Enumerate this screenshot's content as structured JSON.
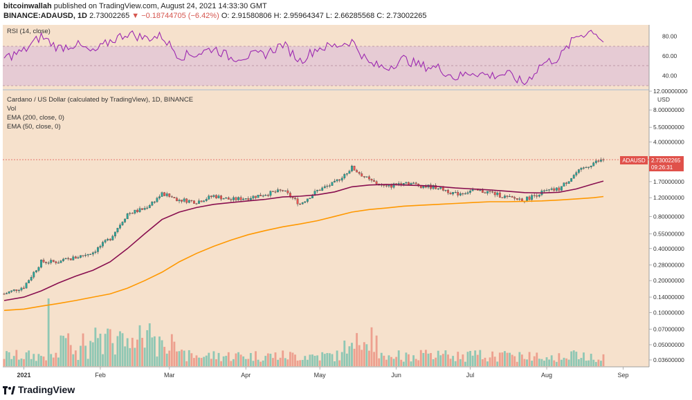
{
  "header": {
    "line1_user": "bitcoinwallah",
    "line1_rest": " published on TradingView.com, August 24, 2021 14:33:30 GMT",
    "symbol": "BINANCE:ADAUSD, 1D",
    "last": "2.73002265",
    "change": "▼ −0.18744705 (−6.42%)",
    "ohlc": "O: 2.91580806  H: 2.95964347  L: 2.66285568  C: 2.73002265"
  },
  "rsi_pane": {
    "label": "RSI (14, close)",
    "ticks": [
      "80.00",
      "60.00",
      "40.00"
    ]
  },
  "price_pane": {
    "title": "Cardano / US Dollar (calculated by TradingView), 1D, BINANCE",
    "indicators": [
      "Vol",
      "EMA (200, close, 0)",
      "EMA (50, close, 0)"
    ],
    "axis_unit": "USD",
    "price_tag": {
      "symbol": "ADAUSD",
      "price": "2.73002265",
      "countdown": "09:26:31"
    }
  },
  "footer": {
    "brand": "TradingView"
  },
  "colors": {
    "background": "#f6e1cc",
    "rsi_band": "#e6cbd4",
    "rsi_line": "#9c27b0",
    "up": "#26a69a",
    "down": "#ef5350",
    "ema200": "#ff9800",
    "ema50": "#880e4f",
    "tag": "#e0514a"
  },
  "chart_data": {
    "type": "candlestick",
    "xlabels": [
      "2021",
      "Feb",
      "Mar",
      "Apr",
      "May",
      "Jun",
      "Jul",
      "Aug",
      "Sep"
    ],
    "yaxis": {
      "scale": "log",
      "ticks": [
        "12.00000000",
        "8.00000000",
        "5.50000000",
        "4.00000000",
        "2.73002265",
        "1.70000000",
        "1.20000000",
        "0.80000000",
        "0.55000000",
        "0.40000000",
        "0.28000000",
        "0.20000000",
        "0.14000000",
        "0.10000000",
        "0.07000000",
        "0.05000000",
        "0.03600000"
      ],
      "tick_values": [
        12,
        8,
        5.5,
        4,
        2.73,
        1.7,
        1.2,
        0.8,
        0.55,
        0.4,
        0.28,
        0.2,
        0.14,
        0.1,
        0.07,
        0.05,
        0.036
      ]
    },
    "approx_close_series": {
      "dates": [
        "2020-12-24",
        "2021-01-01",
        "2021-01-08",
        "2021-01-15",
        "2021-01-22",
        "2021-01-29",
        "2021-02-05",
        "2021-02-12",
        "2021-02-19",
        "2021-02-26",
        "2021-03-05",
        "2021-03-12",
        "2021-03-19",
        "2021-03-26",
        "2021-04-02",
        "2021-04-09",
        "2021-04-16",
        "2021-04-23",
        "2021-04-30",
        "2021-05-07",
        "2021-05-14",
        "2021-05-21",
        "2021-05-28",
        "2021-06-04",
        "2021-06-11",
        "2021-06-18",
        "2021-06-25",
        "2021-07-02",
        "2021-07-09",
        "2021-07-16",
        "2021-07-23",
        "2021-07-30",
        "2021-08-06",
        "2021-08-13",
        "2021-08-20",
        "2021-08-24"
      ],
      "close": [
        0.15,
        0.175,
        0.3,
        0.3,
        0.33,
        0.37,
        0.5,
        0.85,
        0.95,
        1.3,
        1.15,
        1.1,
        1.25,
        1.15,
        1.2,
        1.3,
        1.4,
        1.05,
        1.4,
        1.65,
        2.3,
        1.75,
        1.5,
        1.7,
        1.55,
        1.5,
        1.3,
        1.4,
        1.35,
        1.2,
        1.15,
        1.35,
        1.45,
        2.05,
        2.55,
        2.73
      ]
    },
    "ema200": [
      0.105,
      0.108,
      0.115,
      0.122,
      0.13,
      0.14,
      0.15,
      0.17,
      0.2,
      0.24,
      0.3,
      0.36,
      0.42,
      0.48,
      0.54,
      0.59,
      0.64,
      0.68,
      0.73,
      0.8,
      0.88,
      0.93,
      0.96,
      1.0,
      1.02,
      1.04,
      1.06,
      1.08,
      1.1,
      1.1,
      1.11,
      1.12,
      1.14,
      1.17,
      1.2,
      1.23
    ],
    "ema50": [
      0.13,
      0.14,
      0.16,
      0.19,
      0.22,
      0.25,
      0.3,
      0.4,
      0.55,
      0.75,
      0.88,
      0.97,
      1.04,
      1.08,
      1.12,
      1.16,
      1.22,
      1.24,
      1.28,
      1.36,
      1.52,
      1.58,
      1.6,
      1.58,
      1.56,
      1.53,
      1.48,
      1.45,
      1.42,
      1.38,
      1.34,
      1.33,
      1.35,
      1.45,
      1.62,
      1.72
    ],
    "rsi": [
      58,
      65,
      80,
      68,
      72,
      63,
      75,
      83,
      78,
      80,
      60,
      62,
      68,
      58,
      60,
      62,
      72,
      55,
      68,
      70,
      75,
      52,
      48,
      57,
      50,
      48,
      38,
      44,
      40,
      42,
      32,
      52,
      58,
      80,
      86,
      75
    ]
  }
}
